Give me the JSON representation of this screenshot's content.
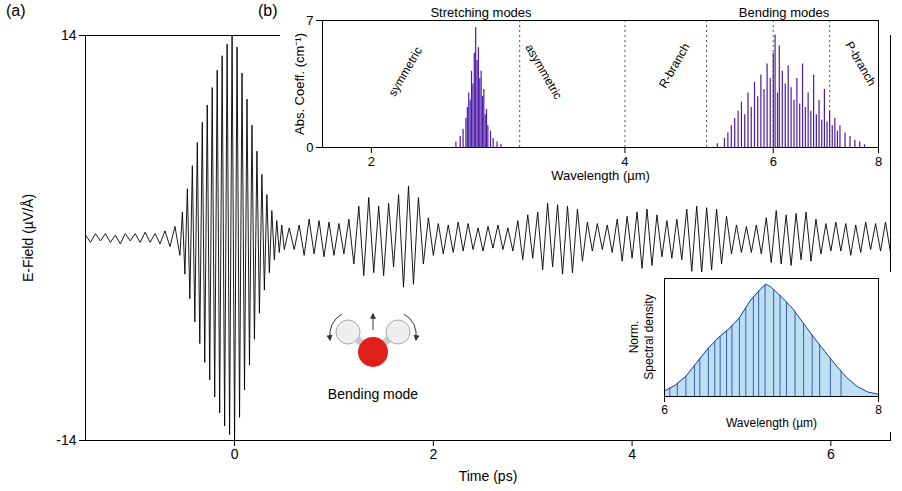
{
  "chart_data": [
    {
      "type": "line",
      "panel": "(a)",
      "x_label": "Time (ps)",
      "y_label": "E-Field (µV/Å)",
      "xlim": [
        -1.5,
        6.6
      ],
      "xticks": [
        0,
        2,
        4,
        6
      ],
      "ylim": [
        -14,
        14
      ],
      "yticks": [
        -14,
        14
      ],
      "color": "#000000",
      "annotations": [
        "Bending mode"
      ],
      "x": [
        -1.5,
        -1.45,
        -1.4,
        -1.35,
        -1.3,
        -1.25,
        -1.2,
        -1.15,
        -1.1,
        -1.05,
        -1.0,
        -0.95,
        -0.9,
        -0.85,
        -0.8,
        -0.75,
        -0.7,
        -0.65,
        -0.6,
        -0.55,
        -0.525,
        -0.5,
        -0.475,
        -0.45,
        -0.425,
        -0.4,
        -0.375,
        -0.35,
        -0.325,
        -0.3,
        -0.275,
        -0.25,
        -0.225,
        -0.2,
        -0.175,
        -0.15,
        -0.125,
        -0.1,
        -0.075,
        -0.05,
        -0.025,
        0,
        0.025,
        0.05,
        0.075,
        0.1,
        0.125,
        0.15,
        0.175,
        0.2,
        0.225,
        0.25,
        0.275,
        0.3,
        0.325,
        0.35,
        0.375,
        0.4,
        0.425,
        0.45,
        0.475,
        0.5,
        0.55,
        0.6,
        0.65,
        0.7,
        0.75,
        0.8,
        0.85,
        0.9,
        0.95,
        1.0,
        1.05,
        1.1,
        1.15,
        1.2,
        1.25,
        1.3,
        1.35,
        1.4,
        1.45,
        1.5,
        1.55,
        1.6,
        1.65,
        1.7,
        1.75,
        1.8,
        1.85,
        1.9,
        1.95,
        2.0,
        2.05,
        2.1,
        2.15,
        2.2,
        2.25,
        2.3,
        2.35,
        2.4,
        2.45,
        2.5,
        2.55,
        2.6,
        2.65,
        2.7,
        2.75,
        2.8,
        2.85,
        2.9,
        2.95,
        3.0,
        3.05,
        3.1,
        3.15,
        3.2,
        3.25,
        3.3,
        3.35,
        3.4,
        3.45,
        3.5,
        3.55,
        3.6,
        3.65,
        3.7,
        3.75,
        3.8,
        3.85,
        3.9,
        3.95,
        4.0,
        4.05,
        4.1,
        4.15,
        4.2,
        4.25,
        4.3,
        4.35,
        4.4,
        4.45,
        4.5,
        4.55,
        4.6,
        4.65,
        4.7,
        4.75,
        4.8,
        4.85,
        4.9,
        4.95,
        5.0,
        5.05,
        5.1,
        5.15,
        5.2,
        5.25,
        5.3,
        5.35,
        5.4,
        5.45,
        5.5,
        5.55,
        5.6,
        5.65,
        5.7,
        5.75,
        5.8,
        5.85,
        5.9,
        5.95,
        6.0,
        6.05,
        6.1,
        6.15,
        6.2,
        6.25,
        6.3,
        6.35,
        6.4,
        6.45,
        6.5,
        6.55,
        6.6
      ],
      "values": [
        0.2,
        -0.3,
        0.3,
        -0.2,
        0.3,
        -0.3,
        0.2,
        -0.4,
        0.3,
        -0.2,
        0.3,
        -0.3,
        0.4,
        -0.3,
        0.3,
        -0.4,
        0.5,
        -0.6,
        0.8,
        -1.2,
        1.8,
        -2.5,
        3.4,
        -4.2,
        5.0,
        -5.8,
        6.6,
        -7.3,
        8.0,
        -8.6,
        9.2,
        -9.8,
        10.4,
        -11.0,
        11.6,
        -12.1,
        12.6,
        -13.0,
        13.4,
        -13.6,
        14.0,
        -14.0,
        13.2,
        -12.4,
        11.4,
        -10.5,
        9.6,
        -8.8,
        7.8,
        -7.0,
        6.0,
        -5.2,
        4.4,
        -3.6,
        3.0,
        -2.4,
        1.9,
        -1.5,
        1.2,
        -1.0,
        0.9,
        -0.8,
        0.7,
        -0.8,
        0.9,
        -1.2,
        1.3,
        -1.1,
        1.2,
        -1.3,
        1.1,
        -1.2,
        1.0,
        -1.1,
        1.3,
        -1.8,
        2.2,
        -2.6,
        2.8,
        -2.4,
        2.2,
        -2.6,
        2.4,
        -2.0,
        3.0,
        -3.4,
        3.6,
        -3.2,
        2.8,
        -1.8,
        1.4,
        -1.2,
        1.0,
        -1.1,
        0.9,
        -1.0,
        1.1,
        -0.9,
        1.0,
        -0.8,
        0.7,
        -0.9,
        0.8,
        -0.7,
        0.9,
        -0.8,
        0.7,
        -0.9,
        1.2,
        -1.5,
        1.6,
        -1.4,
        1.8,
        -2.2,
        2.4,
        -2.0,
        2.3,
        -2.5,
        2.2,
        -2.4,
        2.0,
        -1.6,
        1.1,
        -0.9,
        1.0,
        -0.8,
        0.9,
        -1.0,
        1.3,
        -1.6,
        1.5,
        -1.4,
        1.8,
        -2.1,
        2.0,
        -1.9,
        1.6,
        -1.3,
        1.2,
        -1.4,
        1.3,
        -1.5,
        2.0,
        -2.3,
        2.2,
        -2.4,
        2.1,
        -2.2,
        2.0,
        -1.8,
        1.5,
        -1.1,
        0.9,
        -1.0,
        0.8,
        -1.0,
        0.9,
        -1.1,
        1.4,
        -1.7,
        1.9,
        -1.8,
        1.6,
        -1.9,
        1.7,
        -1.5,
        1.8,
        -1.6,
        1.3,
        -1.1,
        1.0,
        -0.9,
        1.1,
        -0.9,
        1.0,
        -1.2,
        0.9,
        -1.0,
        1.1,
        -0.8,
        1.0,
        -0.9,
        1.1,
        -1.0
      ]
    },
    {
      "type": "stem",
      "panel": "(b)",
      "x_label": "Wavelength (µm)",
      "y_label": "Abs. Coeff. (cm⁻¹)",
      "log": "x",
      "xlim": [
        1.75,
        8
      ],
      "xticks": [
        2,
        4,
        6,
        8
      ],
      "ylim": [
        0,
        7
      ],
      "yticks": [
        0,
        7
      ],
      "reference_lines": [
        3,
        4,
        5,
        6,
        7
      ],
      "color": "#4b1aa6",
      "annotations": [
        "Stretching modes",
        "Bending modes",
        "symmetric",
        "asymmetric",
        "R-branch",
        "P-branch"
      ],
      "x": [
        2.52,
        2.55,
        2.57,
        2.59,
        2.6,
        2.61,
        2.62,
        2.63,
        2.64,
        2.65,
        2.66,
        2.67,
        2.68,
        2.69,
        2.7,
        2.71,
        2.72,
        2.73,
        2.74,
        2.75,
        2.77,
        2.79,
        2.82,
        2.85,
        5.15,
        5.25,
        5.3,
        5.35,
        5.4,
        5.45,
        5.5,
        5.55,
        5.6,
        5.65,
        5.7,
        5.75,
        5.8,
        5.85,
        5.9,
        5.95,
        6.0,
        6.03,
        6.07,
        6.1,
        6.15,
        6.2,
        6.25,
        6.3,
        6.35,
        6.4,
        6.45,
        6.5,
        6.55,
        6.6,
        6.65,
        6.7,
        6.75,
        6.8,
        6.85,
        6.9,
        6.95,
        7.0,
        7.05,
        7.1,
        7.15,
        7.2,
        7.3,
        7.4,
        7.5,
        7.6,
        7.7
      ],
      "values": [
        0.3,
        0.6,
        1.0,
        1.6,
        2.2,
        3.0,
        2.6,
        4.2,
        3.5,
        5.2,
        6.6,
        4.8,
        5.5,
        3.8,
        4.2,
        2.8,
        3.2,
        1.8,
        2.1,
        1.2,
        0.9,
        0.5,
        0.3,
        0.15,
        0.2,
        0.5,
        0.8,
        1.2,
        1.6,
        2.0,
        2.5,
        1.8,
        3.0,
        2.2,
        3.6,
        2.8,
        4.0,
        3.2,
        4.6,
        3.8,
        5.2,
        6.2,
        3.0,
        5.6,
        4.2,
        3.5,
        4.5,
        3.3,
        2.6,
        3.8,
        2.4,
        4.6,
        2.2,
        3.0,
        2.0,
        4.0,
        1.8,
        2.6,
        1.5,
        3.2,
        1.4,
        2.0,
        1.2,
        1.6,
        0.9,
        1.2,
        0.8,
        0.6,
        0.4,
        0.3,
        0.15
      ]
    },
    {
      "type": "area",
      "x_label": "Wavelength (µm)",
      "y_label": "Norm. Spectral density",
      "xlim": [
        6,
        8
      ],
      "xticks": [
        6,
        8
      ],
      "ylim": [
        0,
        1.05
      ],
      "tick_labels": "x",
      "color": "#bcdff3",
      "x": [
        6.0,
        6.1,
        6.2,
        6.3,
        6.4,
        6.5,
        6.6,
        6.7,
        6.8,
        6.9,
        6.95,
        7.0,
        7.1,
        7.2,
        7.3,
        7.4,
        7.5,
        7.6,
        7.7,
        7.8,
        7.9,
        8.0
      ],
      "values": [
        0.05,
        0.1,
        0.18,
        0.3,
        0.42,
        0.52,
        0.6,
        0.7,
        0.85,
        0.96,
        1.0,
        0.97,
        0.88,
        0.78,
        0.65,
        0.52,
        0.4,
        0.28,
        0.17,
        0.09,
        0.04,
        0.02
      ],
      "absorption_lines": {
        "color": "#1f3c96",
        "x": [
          6.05,
          6.12,
          6.2,
          6.28,
          6.33,
          6.41,
          6.47,
          6.52,
          6.58,
          6.63,
          6.7,
          6.76,
          6.83,
          6.88,
          6.94,
          7.02,
          7.08,
          7.14,
          7.22,
          7.3,
          7.38,
          7.45,
          7.55,
          7.65
        ]
      }
    }
  ]
}
